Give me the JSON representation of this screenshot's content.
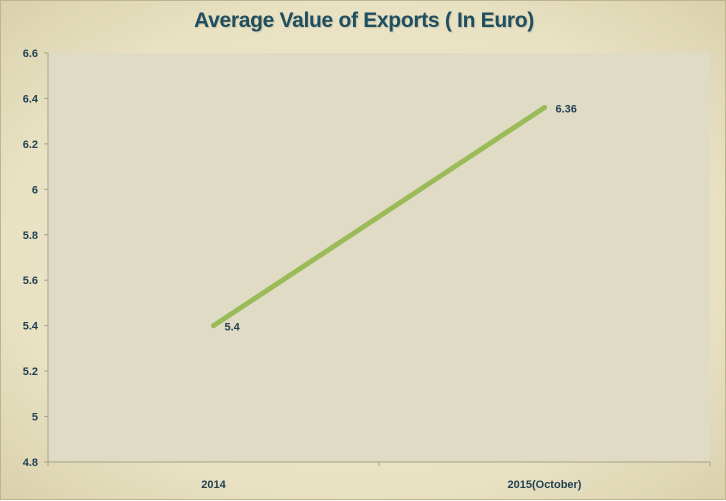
{
  "chart_data": {
    "type": "line",
    "title": "Average Value of Exports ( In Euro)",
    "xlabel": "",
    "ylabel": "",
    "categories": [
      "2014",
      "2015(October)"
    ],
    "series": [
      {
        "values": [
          5.4,
          6.36
        ],
        "color": "#9bbb59"
      }
    ],
    "data_labels": [
      "5.4",
      "6.36"
    ],
    "y_ticks": [
      "4.8",
      "5",
      "5.2",
      "5.4",
      "5.6",
      "5.8",
      "6",
      "6.2",
      "6.4",
      "6.6"
    ],
    "ylim": [
      4.8,
      6.6
    ],
    "grid": false,
    "legend": "none"
  }
}
